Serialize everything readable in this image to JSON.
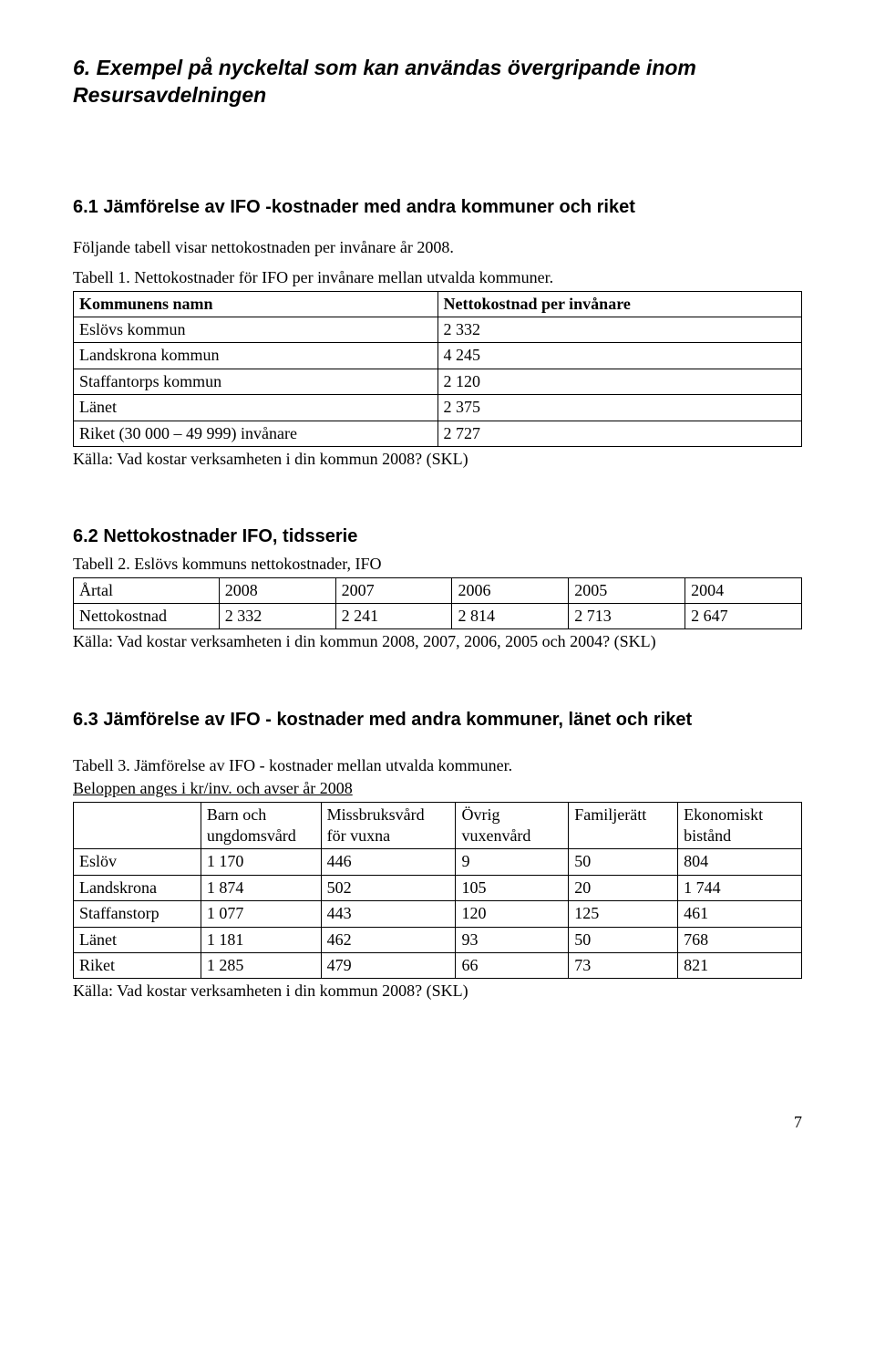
{
  "title_line1": "6. Exempel på nyckeltal som kan användas övergripande inom",
  "title_line2": "Resursavdelningen",
  "section1": {
    "heading": "6.1 Jämförelse av IFO -kostnader med andra kommuner och riket",
    "para1": "Följande tabell visar nettokostnaden per invånare år 2008.",
    "para2": "Tabell 1. Nettokostnader för IFO per invånare mellan utvalda kommuner.",
    "table": {
      "header": [
        "Kommunens namn",
        "Nettokostnad per invånare"
      ],
      "rows": [
        [
          "Eslövs kommun",
          "2 332"
        ],
        [
          "Landskrona kommun",
          "4 245"
        ],
        [
          "Staffantorps kommun",
          "2 120"
        ],
        [
          "Länet",
          "2 375"
        ],
        [
          "Riket (30 000 – 49 999) invånare",
          "2 727"
        ]
      ]
    },
    "source": "Källa: Vad kostar verksamheten i din kommun 2008? (SKL)"
  },
  "section2": {
    "heading": "6.2 Nettokostnader IFO, tidsserie",
    "caption": "Tabell 2. Eslövs kommuns nettokostnader, IFO",
    "table": {
      "rows": [
        [
          "Årtal",
          "2008",
          "2007",
          "2006",
          "2005",
          "2004"
        ],
        [
          "Nettokostnad",
          "2 332",
          "2 241",
          "2 814",
          "2 713",
          "2 647"
        ]
      ]
    },
    "source": "Källa: Vad kostar verksamheten i din kommun 2008, 2007, 2006, 2005 och 2004? (SKL)"
  },
  "section3": {
    "heading": "6.3 Jämförelse av IFO - kostnader med andra kommuner, länet och riket",
    "caption_l1": "Tabell 3. Jämförelse av IFO - kostnader mellan utvalda kommuner.",
    "caption_l2": "Beloppen anges i kr/inv. och avser år 2008",
    "table": {
      "header_r1": [
        "",
        "Barn och",
        "Missbruksvård",
        "Övrig",
        "Familjerätt",
        "Ekonomiskt"
      ],
      "header_r2": [
        "",
        "ungdomsvård",
        "för vuxna",
        "vuxenvård",
        "",
        "bistånd"
      ],
      "rows": [
        [
          "Eslöv",
          "1 170",
          "446",
          "9",
          "50",
          "804"
        ],
        [
          "Landskrona",
          "1 874",
          "502",
          "105",
          "20",
          "1 744"
        ],
        [
          "Staffanstorp",
          "1 077",
          "443",
          "120",
          "125",
          "461"
        ],
        [
          "Länet",
          "1 181",
          "462",
          "93",
          "50",
          "768"
        ],
        [
          "Riket",
          "1 285",
          "479",
          "66",
          "73",
          "821"
        ]
      ]
    },
    "source": "Källa: Vad kostar verksamheten i din kommun 2008? (SKL)"
  },
  "page_number": "7",
  "widths": {
    "t1": [
      "50%",
      "50%"
    ],
    "t2": [
      "20%",
      "16%",
      "16%",
      "16%",
      "16%",
      "16%"
    ],
    "t3": [
      "17.5%",
      "16.5%",
      "18.5%",
      "15.5%",
      "15%",
      "17%"
    ]
  }
}
